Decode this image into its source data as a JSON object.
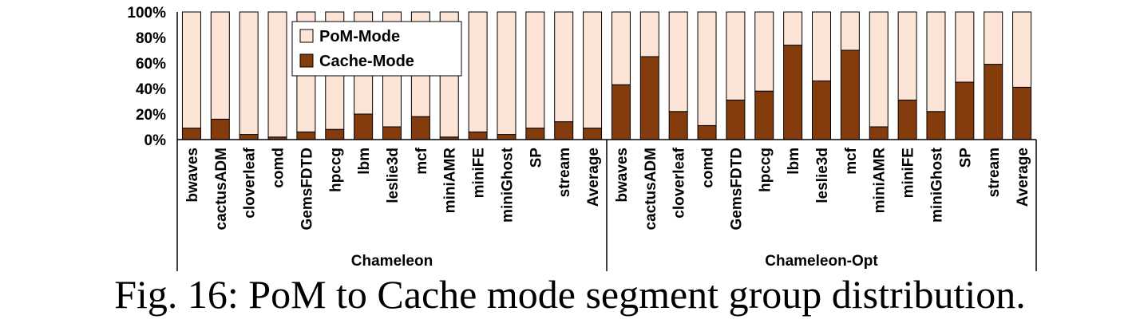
{
  "chart_data": {
    "type": "bar",
    "stacked": true,
    "percent": true,
    "ylim": [
      0,
      100
    ],
    "yticks": [
      "0%",
      "20%",
      "40%",
      "60%",
      "80%",
      "100%"
    ],
    "groups": [
      {
        "label": "Chameleon",
        "categories": [
          "bwaves",
          "cactusADM",
          "cloverleaf",
          "comd",
          "GemsFDTD",
          "hpccg",
          "lbm",
          "leslie3d",
          "mcf",
          "miniAMR",
          "miniFE",
          "miniGhost",
          "SP",
          "stream",
          "Average"
        ],
        "series": [
          {
            "name": "Cache-Mode",
            "values": [
              9,
              16,
              4,
              2,
              6,
              8,
              20,
              10,
              18,
              2,
              6,
              4,
              9,
              14,
              9
            ]
          },
          {
            "name": "PoM-Mode",
            "values": [
              91,
              84,
              96,
              98,
              94,
              92,
              80,
              90,
              82,
              98,
              94,
              96,
              91,
              86,
              91
            ]
          }
        ]
      },
      {
        "label": "Chameleon-Opt",
        "categories": [
          "bwaves",
          "cactusADM",
          "cloverleaf",
          "comd",
          "GemsFDTD",
          "hpccg",
          "lbm",
          "leslie3d",
          "mcf",
          "miniAMR",
          "miniFE",
          "miniGhost",
          "SP",
          "stream",
          "Average"
        ],
        "series": [
          {
            "name": "Cache-Mode",
            "values": [
              43,
              65,
              22,
              11,
              31,
              38,
              74,
              46,
              70,
              10,
              31,
              22,
              45,
              59,
              41
            ]
          },
          {
            "name": "PoM-Mode",
            "values": [
              57,
              35,
              78,
              89,
              69,
              62,
              26,
              54,
              30,
              90,
              69,
              78,
              55,
              41,
              59
            ]
          }
        ]
      }
    ],
    "legend": {
      "entries": [
        "PoM-Mode",
        "Cache-Mode"
      ],
      "placement": "top-left"
    },
    "colors": {
      "PoM-Mode": "#fce4d6",
      "Cache-Mode": "#843c0c",
      "edge": "#000000"
    }
  },
  "caption": "Fig. 16: PoM to Cache mode segment group distribution."
}
